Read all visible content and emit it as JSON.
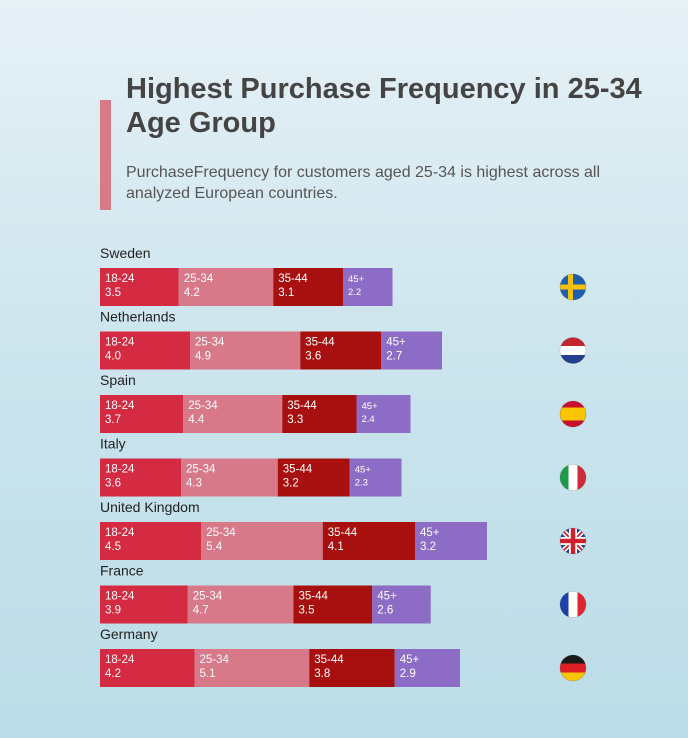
{
  "title": "Highest Purchase Frequency in 25-34 Age Group",
  "subtitle": "PurchaseFrequency for customers aged 25-34 is highest across all analyzed European countries.",
  "colors": {
    "accent": "#d87a88",
    "age_18_24": "#d42a42",
    "age_25_34": "#d8798a",
    "age_35_44": "#a8100f",
    "age_45_plus": "#8c6cc4"
  },
  "chart_data": {
    "type": "bar",
    "orientation": "horizontal",
    "stacked": true,
    "categories": [
      "Sweden",
      "Netherlands",
      "Spain",
      "Italy",
      "United Kingdom",
      "France",
      "Germany"
    ],
    "series": [
      {
        "name": "18-24",
        "values": [
          3.5,
          4.0,
          3.7,
          3.6,
          4.5,
          3.9,
          4.2
        ]
      },
      {
        "name": "25-34",
        "values": [
          4.2,
          4.9,
          4.4,
          4.3,
          5.4,
          4.7,
          5.1
        ]
      },
      {
        "name": "35-44",
        "values": [
          3.1,
          3.6,
          3.3,
          3.2,
          4.1,
          3.5,
          3.8
        ]
      },
      {
        "name": "45+",
        "values": [
          2.2,
          2.7,
          2.4,
          2.3,
          3.2,
          2.6,
          2.9
        ]
      }
    ],
    "flags": [
      "sweden-flag",
      "netherlands-flag",
      "spain-flag",
      "italy-flag",
      "united-kingdom-flag",
      "france-flag",
      "germany-flag"
    ],
    "grid": false,
    "legend": "none"
  }
}
